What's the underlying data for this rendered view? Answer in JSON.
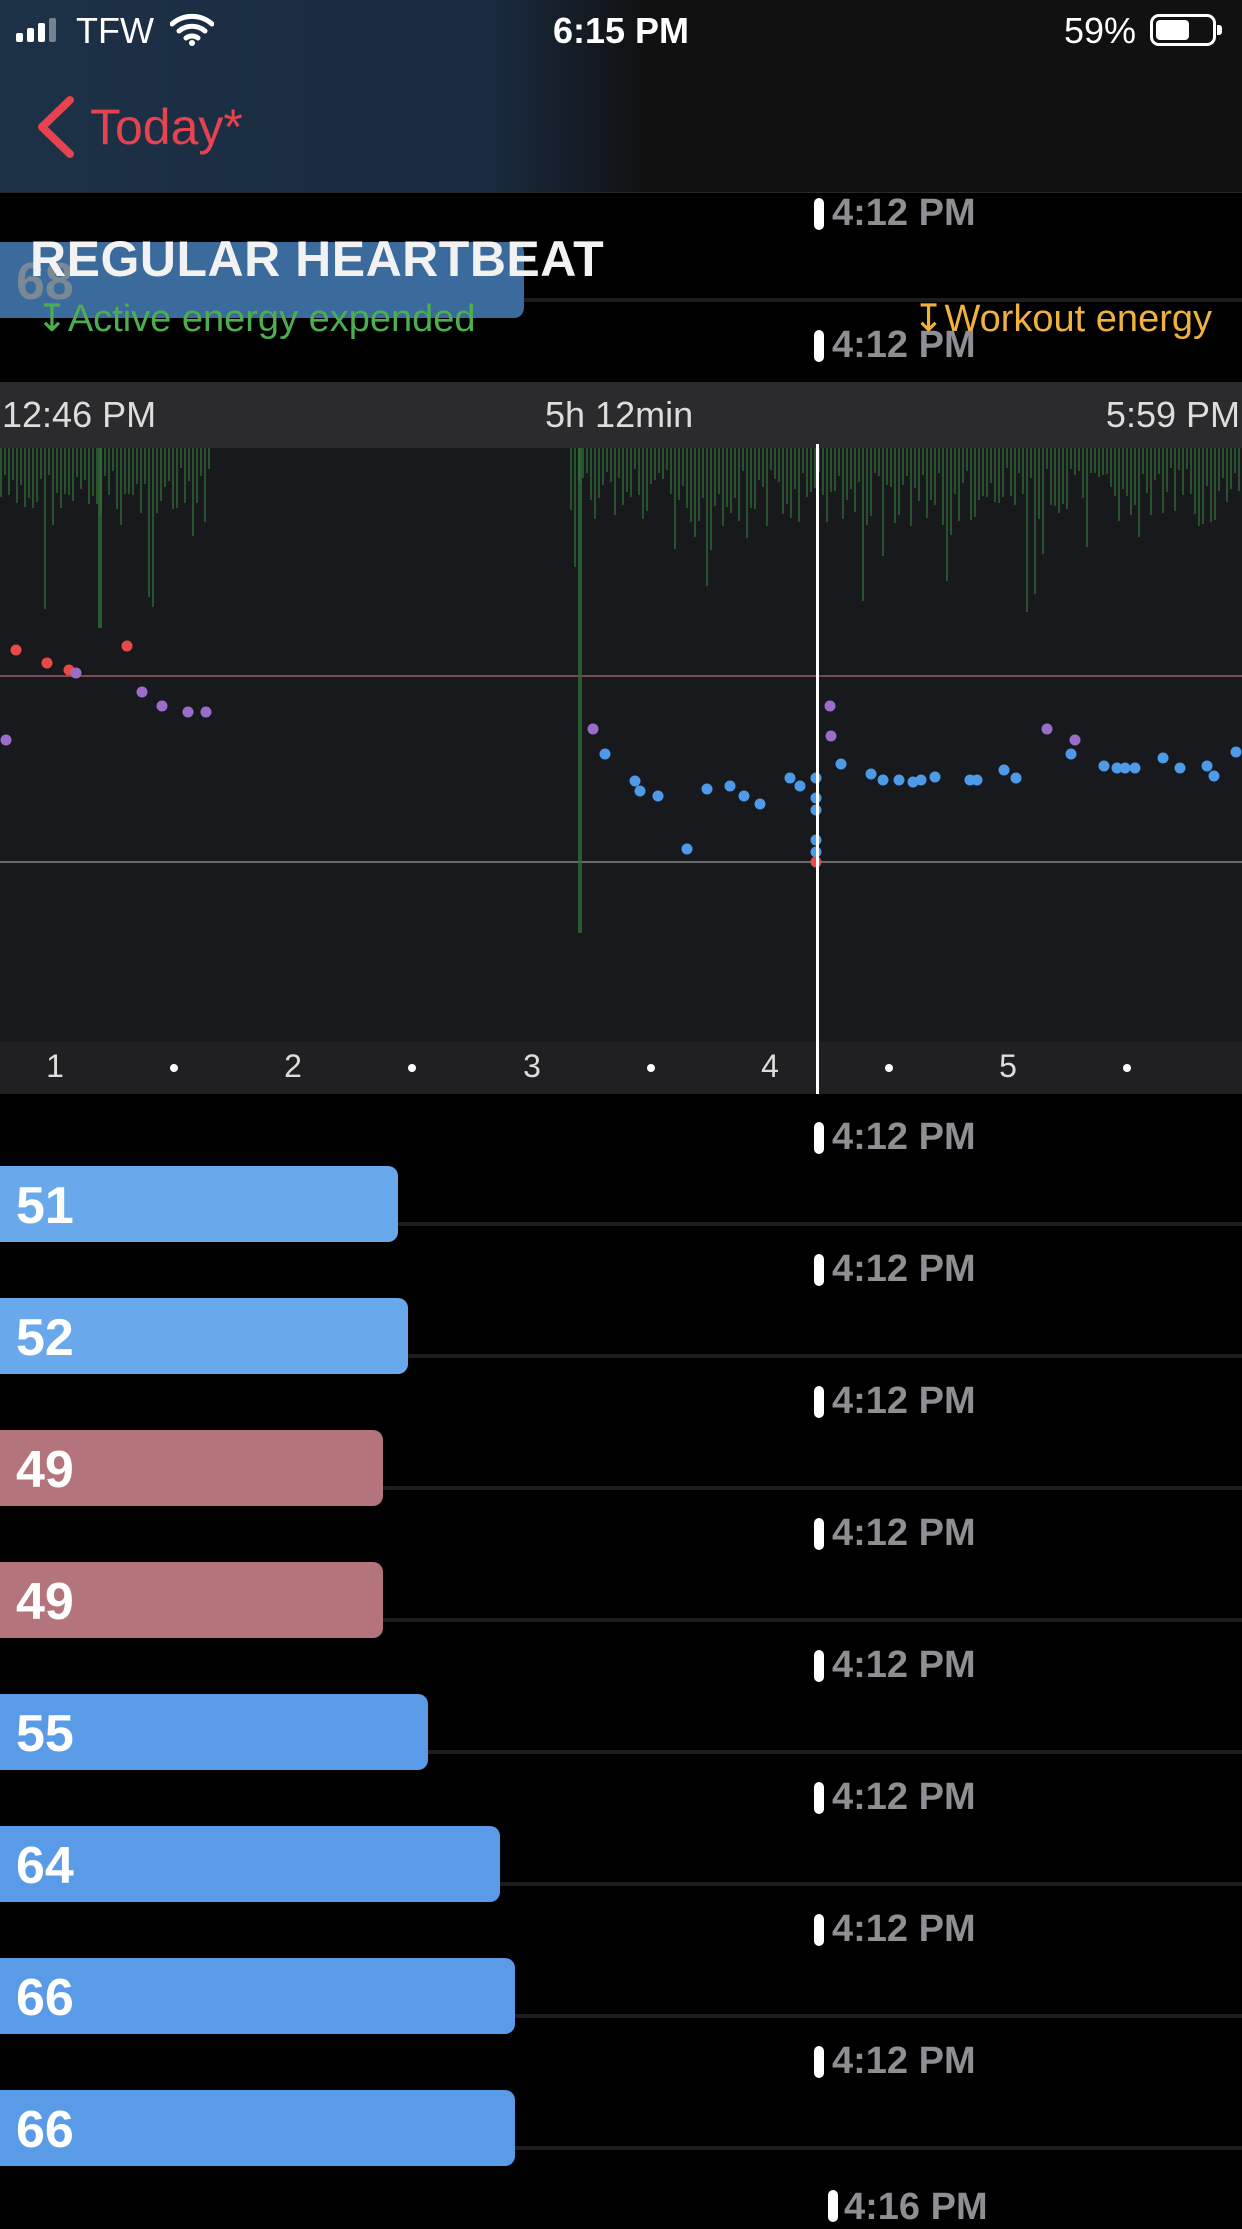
{
  "status": {
    "carrier": "TFW",
    "time": "6:15 PM",
    "battery": "59%",
    "battery_level": 0.59
  },
  "nav": {
    "back_label": "Today*"
  },
  "header": {
    "title": "REGULAR HEARTBEAT",
    "legend_active": "↧Active energy expended",
    "legend_workout": "↧Workout energy"
  },
  "time_strip": {
    "start": "12:46 PM",
    "duration": "5h 12min",
    "end": "5:59 PM"
  },
  "ticks": [
    "1",
    "2",
    "3",
    "4",
    "5"
  ],
  "peek_rows": [
    {
      "time": "4:12 PM",
      "value": "68"
    },
    {
      "time": "4:12 PM"
    }
  ],
  "rows": [
    {
      "value": "51",
      "time": "4:12 PM",
      "color": "#6aa8ec",
      "fraction": 0.39
    },
    {
      "value": "52",
      "time": "4:12 PM",
      "color": "#6aa8ec",
      "fraction": 0.4
    },
    {
      "value": "49",
      "time": "4:12 PM",
      "color": "#b4747b",
      "fraction": 0.375
    },
    {
      "value": "49",
      "time": "4:12 PM",
      "color": "#b4747b",
      "fraction": 0.375
    },
    {
      "value": "55",
      "time": "4:12 PM",
      "color": "#5a9be8",
      "fraction": 0.42
    },
    {
      "value": "64",
      "time": "4:12 PM",
      "color": "#5a9be8",
      "fraction": 0.49
    },
    {
      "value": "66",
      "time": "4:12 PM",
      "color": "#5a9be8",
      "fraction": 0.505
    },
    {
      "value": "66",
      "time": "4:12 PM",
      "color": "#5a9be8",
      "fraction": 0.505
    }
  ],
  "last_row_time": "4:16 PM",
  "colors": {
    "accent_red": "#e4434f",
    "active_green": "#4cae4f",
    "workout_orange": "#f0b23c",
    "point_blue": "#4c9ae8",
    "point_purple": "#9a6ec8",
    "point_red": "#e84a4a"
  }
}
